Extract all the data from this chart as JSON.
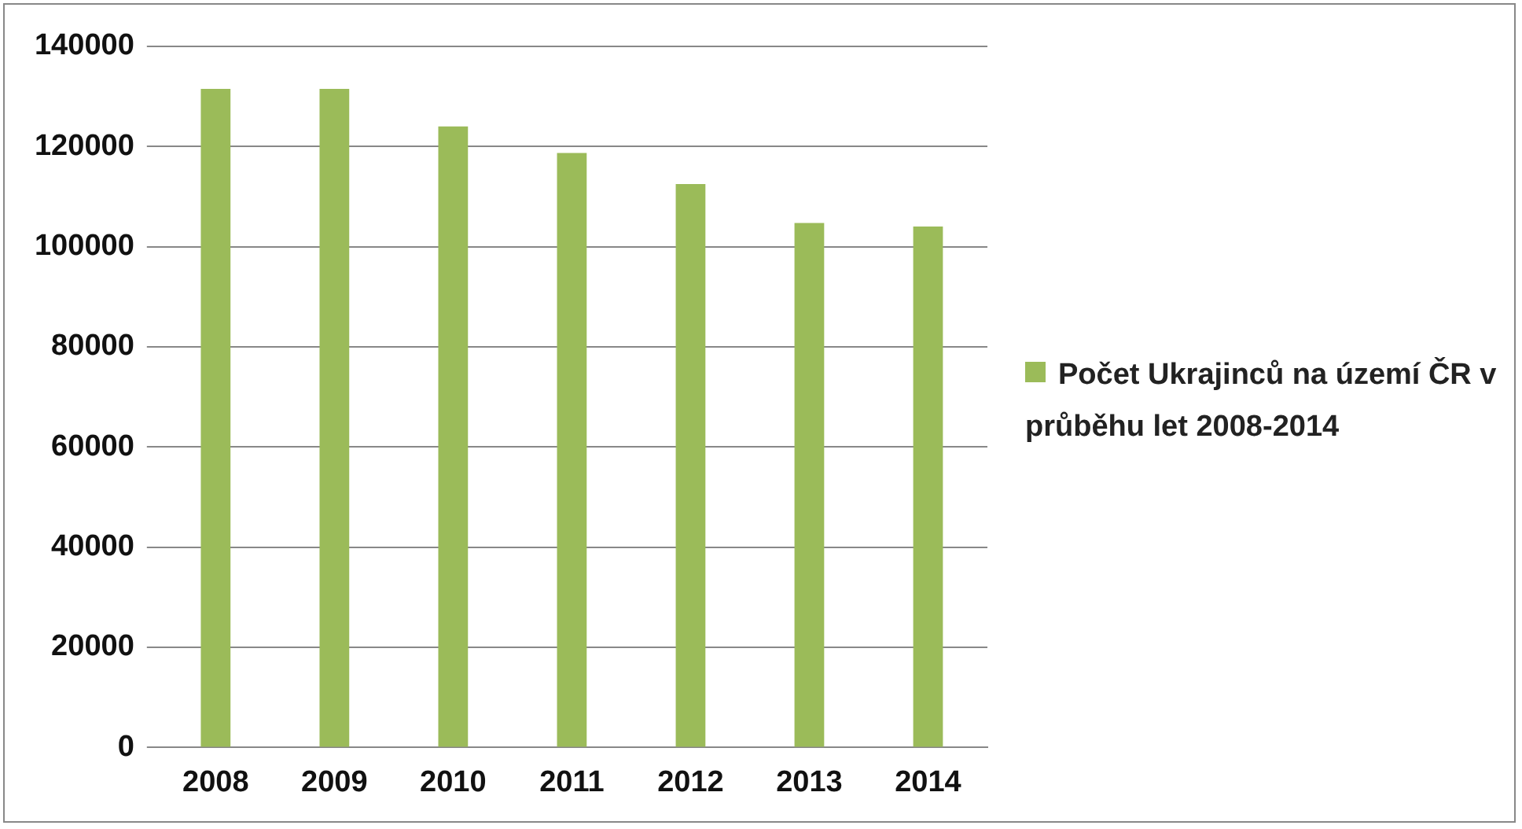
{
  "chart_data": {
    "type": "bar",
    "categories": [
      "2008",
      "2009",
      "2010",
      "2011",
      "2012",
      "2013",
      "2014"
    ],
    "series": [
      {
        "name": "Počet Ukrajinců na území ČR v průběhu let 2008-2014",
        "color": "#9bbb59",
        "values": [
          131500,
          131500,
          124000,
          118700,
          112500,
          104700,
          104000
        ]
      }
    ],
    "ylim": [
      0,
      140000
    ],
    "yticks": [
      0,
      20000,
      40000,
      60000,
      80000,
      100000,
      120000,
      140000
    ],
    "grid": "y",
    "legend": "right"
  }
}
